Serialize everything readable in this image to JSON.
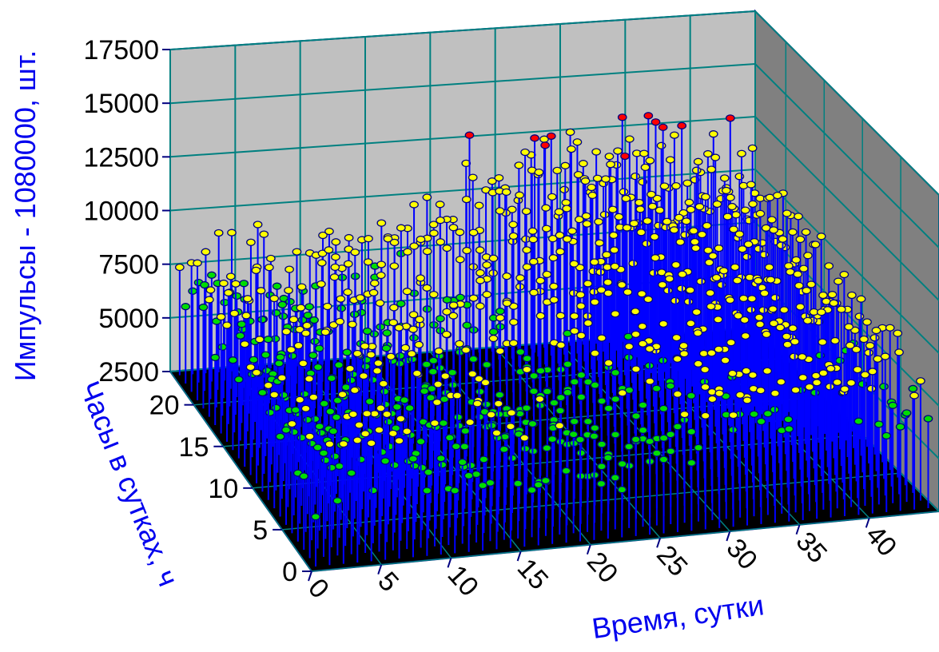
{
  "chart_data": {
    "type": "scatter",
    "subtype": "3d-stem",
    "title": "",
    "xlabel": "Время, сутки",
    "ylabel": "Часы в сутках, ч",
    "zlabel": "Импульсы - 1080000, шт.",
    "x_ticks": [
      "0",
      "5",
      "10",
      "15",
      "20",
      "25",
      "30",
      "35",
      "40"
    ],
    "y_ticks": [
      "0",
      "5",
      "10",
      "15",
      "20"
    ],
    "z_ticks": [
      "2500",
      "5000",
      "7500",
      "10000",
      "12500",
      "15000",
      "17500"
    ],
    "xlim": [
      0,
      45
    ],
    "ylim": [
      0,
      24
    ],
    "zlim": [
      2500,
      17500
    ],
    "grid": true,
    "colors": {
      "stem": "#0000ff",
      "floor": "#000000",
      "back_wall": "#c0c0c0",
      "side_wall": "#808080",
      "grid": "#008080",
      "frame": "#000080",
      "low": "#00ffff",
      "mid": "#00dd00",
      "high": "#ffff00",
      "peak": "#ff0000"
    },
    "color_bands": [
      4000,
      7500,
      12800
    ],
    "peaks": [
      {
        "x": 22.5,
        "y": 23,
        "z": 12950
      },
      {
        "x": 27.5,
        "y": 23,
        "z": 12600
      },
      {
        "x": 42.5,
        "y": 23,
        "z": 12900
      }
    ],
    "generation": {
      "x_start": 0.5,
      "x_step": 1,
      "x_count": 45,
      "y_start": 0.5,
      "y_step": 1,
      "y_count": 24,
      "seed": 7
    }
  }
}
